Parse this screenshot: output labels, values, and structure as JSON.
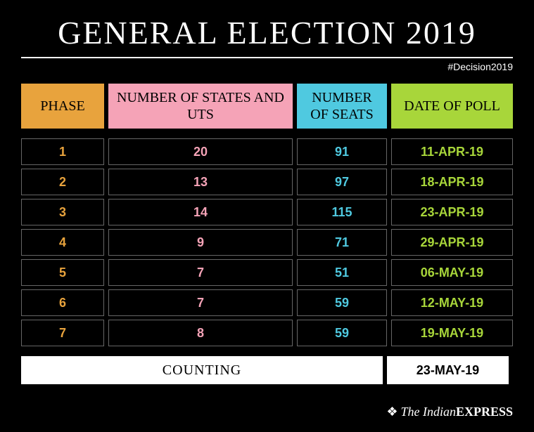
{
  "title": "GENERAL ELECTION 2019",
  "hashtag": "#Decision2019",
  "colors": {
    "phase_header_bg": "#e8a33d",
    "states_header_bg": "#f5a3b7",
    "seats_header_bg": "#4fc9e0",
    "date_header_bg": "#a8d63a",
    "phase_text": "#e8a33d",
    "states_text": "#f5a3b7",
    "seats_text": "#4fc9e0",
    "date_text": "#a8d63a",
    "background": "#000000",
    "text_white": "#ffffff",
    "cell_border": "#666666",
    "footer_bg": "#ffffff"
  },
  "headers": {
    "phase": "PHASE",
    "states": "NUMBER OF STATES AND UTS",
    "seats": "NUMBER OF SEATS",
    "date": "DATE OF POLL"
  },
  "rows": [
    {
      "phase": "1",
      "states": "20",
      "seats": "91",
      "date": "11-APR-19"
    },
    {
      "phase": "2",
      "states": "13",
      "seats": "97",
      "date": "18-APR-19"
    },
    {
      "phase": "3",
      "states": "14",
      "seats": "115",
      "date": "23-APR-19"
    },
    {
      "phase": "4",
      "states": "9",
      "seats": "71",
      "date": "29-APR-19"
    },
    {
      "phase": "5",
      "states": "7",
      "seats": "51",
      "date": "06-MAY-19"
    },
    {
      "phase": "6",
      "states": "7",
      "seats": "59",
      "date": "12-MAY-19"
    },
    {
      "phase": "7",
      "states": "8",
      "seats": "59",
      "date": "19-MAY-19"
    }
  ],
  "footer": {
    "label": "COUNTING",
    "date": "23-MAY-19"
  },
  "source": {
    "icon": "❖",
    "prefix": "The Indian",
    "suffix": "EXPRESS"
  },
  "fonts": {
    "title_size": 46,
    "header_size": 20,
    "cell_size": 18,
    "hashtag_size": 14,
    "source_size": 18
  }
}
